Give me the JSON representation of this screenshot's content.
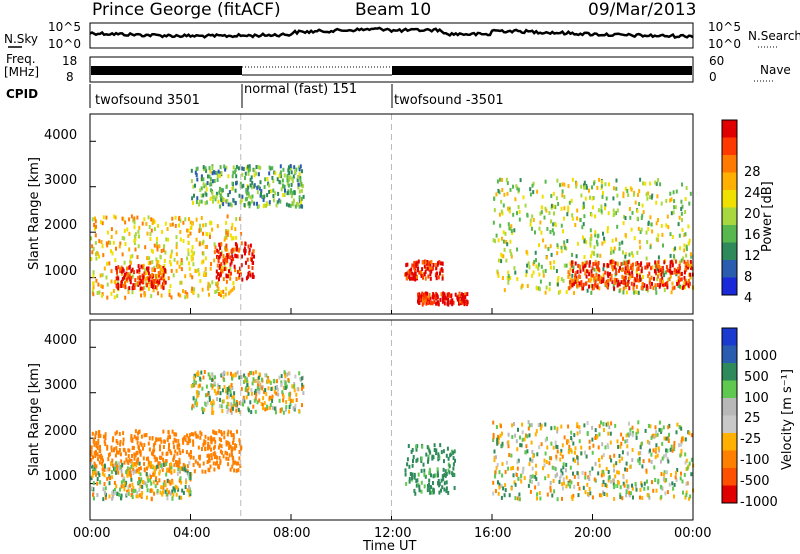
{
  "header": {
    "station": "Prince George (fitACF)",
    "beam": "Beam 10",
    "date": "09/Mar/2013"
  },
  "strip_labels": {
    "nsky": "N.Sky",
    "nsky_top": "10^5",
    "nsky_bottom": "10^0",
    "nsearch": "N.Search",
    "nsearch_top": "10^5",
    "nsearch_bottom": "10^0",
    "freq_line1": "Freq.",
    "freq_line2": "[MHz]",
    "freq_top": "18",
    "freq_bottom": "8",
    "nave": "Nave",
    "nave_top": "60",
    "nave_bottom": "0",
    "cpid": "CPID"
  },
  "cpid_segments": [
    {
      "label": "twofsound 3501",
      "start": "00:00",
      "end": "06:00"
    },
    {
      "label": "normal (fast) 151",
      "start": "06:00",
      "end": "12:00"
    },
    {
      "label": "twofsound -3501",
      "start": "12:00",
      "end": "24:00"
    }
  ],
  "x_axis": {
    "title": "Time UT",
    "ticks": [
      "00:00",
      "04:00",
      "08:00",
      "12:00",
      "16:00",
      "20:00",
      "00:00"
    ]
  },
  "power_colorbar": {
    "title": "Power [dB]",
    "ticks": [
      "28",
      "24",
      "20",
      "16",
      "12",
      "8",
      "4"
    ],
    "colors": [
      "#e00000",
      "#ff3a00",
      "#ff7a00",
      "#ffb000",
      "#f0e000",
      "#a8d840",
      "#58b850",
      "#2e8a5a",
      "#2a5cb0",
      "#1a2ad8"
    ]
  },
  "velocity_colorbar": {
    "title": "Velocity [m s⁻¹]",
    "ticks": [
      "1000",
      "500",
      "100",
      "25",
      "-25",
      "-100",
      "-500",
      "-1000"
    ],
    "colors": [
      "#1a3ad0",
      "#2a5cb0",
      "#2e8a5a",
      "#5ec850",
      "#b8b8b8",
      "#c8c8c8",
      "#ffb000",
      "#ff8000",
      "#ff5000",
      "#e00000"
    ]
  },
  "chart_data": [
    {
      "type": "heatmap",
      "title": "",
      "xlabel": "Time UT",
      "ylabel": "Slant Range [km]",
      "xlim": [
        0,
        24
      ],
      "ylim": [
        200,
        4600
      ],
      "yticks": [
        "1000",
        "2000",
        "3000",
        "4000"
      ],
      "colorbar": "Power [dB]",
      "colorbar_range": [
        0,
        30
      ],
      "mode_change_lines_hours": [
        6,
        12
      ],
      "echo_regions": [
        {
          "t": [
            0,
            6
          ],
          "range_km": [
            600,
            2400
          ],
          "power_db": 18
        },
        {
          "t": [
            1,
            3
          ],
          "range_km": [
            800,
            1300
          ],
          "power_db": 26
        },
        {
          "t": [
            5,
            6.5
          ],
          "range_km": [
            1000,
            1800
          ],
          "power_db": 28
        },
        {
          "t": [
            4,
            8.5
          ],
          "range_km": [
            2600,
            3500
          ],
          "power_db": 10
        },
        {
          "t": [
            12.5,
            14
          ],
          "range_km": [
            1000,
            1400
          ],
          "power_db": 28
        },
        {
          "t": [
            13,
            15
          ],
          "range_km": [
            450,
            700
          ],
          "power_db": 28
        },
        {
          "t": [
            16,
            24
          ],
          "range_km": [
            700,
            3200
          ],
          "power_db": 14
        },
        {
          "t": [
            19,
            24
          ],
          "range_km": [
            800,
            1400
          ],
          "power_db": 26
        }
      ]
    },
    {
      "type": "heatmap",
      "title": "",
      "xlabel": "Time UT",
      "ylabel": "Slant Range [km]",
      "xlim": [
        0,
        24
      ],
      "ylim": [
        200,
        4600
      ],
      "yticks": [
        "1000",
        "2000",
        "3000",
        "4000"
      ],
      "colorbar": "Velocity [m s⁻¹]",
      "colorbar_range": [
        -1000,
        1000
      ],
      "mode_change_lines_hours": [
        6,
        12
      ],
      "echo_regions": [
        {
          "t": [
            0,
            6
          ],
          "range_km": [
            1300,
            2200
          ],
          "velocity": -300
        },
        {
          "t": [
            0,
            4
          ],
          "range_km": [
            700,
            1500
          ],
          "velocity": 0
        },
        {
          "t": [
            4,
            8.5
          ],
          "range_km": [
            2600,
            3500
          ],
          "velocity": 0
        },
        {
          "t": [
            12.5,
            14.5
          ],
          "range_km": [
            800,
            1900
          ],
          "velocity": 200
        },
        {
          "t": [
            16,
            24
          ],
          "range_km": [
            700,
            2400
          ],
          "velocity": 0
        }
      ]
    }
  ]
}
